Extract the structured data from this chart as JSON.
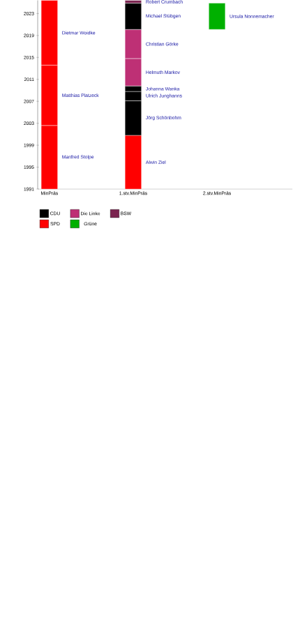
{
  "chart_data": {
    "type": "bar",
    "categories": [
      "MinPräs",
      "1.stv.MinPräs",
      "2.stv.MinPräs"
    ],
    "ylim": [
      1991,
      2025.4
    ],
    "yticks": [
      1991,
      1995,
      1999,
      2003,
      2007,
      2011,
      2015,
      2019,
      2023
    ],
    "legend": "bottom left",
    "series": [
      {
        "name": "Manfred Stolpe",
        "color": "#ff0000",
        "base": [
          1991,
          null,
          null
        ],
        "values": [
          11.6,
          null,
          null
        ]
      },
      {
        "name": "Matthias Platzeck",
        "color": "#ff0000",
        "base": [
          2002.6,
          null,
          null
        ],
        "values": [
          11.0,
          null,
          null
        ]
      },
      {
        "name": "Dietmar Woidke",
        "color": "#ff0000",
        "base": [
          2013.6,
          null,
          null
        ],
        "values": [
          11.8,
          null,
          null
        ]
      },
      {
        "name": "Alwin Ziel",
        "color": "#ff0000",
        "base": [
          null,
          1991,
          null
        ],
        "values": [
          null,
          9.8,
          null
        ]
      },
      {
        "name": "Jörg Schönbohm",
        "color": "#000000",
        "base": [
          null,
          2000.8,
          null
        ],
        "values": [
          null,
          6.3,
          null
        ]
      },
      {
        "name": "Ulrich Junghanns",
        "color": "#000000",
        "base": [
          null,
          2007.1,
          null
        ],
        "values": [
          null,
          1.7,
          null
        ]
      },
      {
        "name": "Johanna Wanka",
        "color": "#000000",
        "base": [
          null,
          2008.8,
          null
        ],
        "values": [
          null,
          1.0,
          null
        ]
      },
      {
        "name": "Helmuth Markov",
        "color": "#be3075",
        "base": [
          null,
          2009.8,
          null
        ],
        "values": [
          null,
          5.0,
          null
        ]
      },
      {
        "name": "Christian Görke",
        "color": "#be3075",
        "base": [
          null,
          2014.8,
          null
        ],
        "values": [
          null,
          5.3,
          null
        ]
      },
      {
        "name": "Michael Stübgen",
        "color": "#000000",
        "base": [
          null,
          2020.1,
          null
        ],
        "values": [
          null,
          4.8,
          null
        ]
      },
      {
        "name": "Robert Crumbach",
        "color": "#7b2450",
        "base": [
          null,
          2024.9,
          null
        ],
        "values": [
          null,
          0.5,
          null
        ]
      },
      {
        "name": "Ursula Nonnemacher",
        "color": "#00b000",
        "base": [
          null,
          null,
          2020.1
        ],
        "values": [
          null,
          null,
          4.8
        ]
      },
      {
        "name": "CDU",
        "color": "#000000",
        "values": [
          null,
          null,
          null
        ]
      },
      {
        "name": "Die Linke",
        "color": "#be3075",
        "values": [
          null,
          null,
          null
        ]
      },
      {
        "name": "BSW",
        "color": "#7b2450",
        "values": [
          null,
          null,
          null
        ]
      },
      {
        "name": "SPD",
        "color": "#ff0000",
        "values": [
          null,
          null,
          null
        ]
      },
      {
        "name": "Grüne",
        "color": "#00b000",
        "values": [
          null,
          null,
          null
        ]
      }
    ]
  }
}
